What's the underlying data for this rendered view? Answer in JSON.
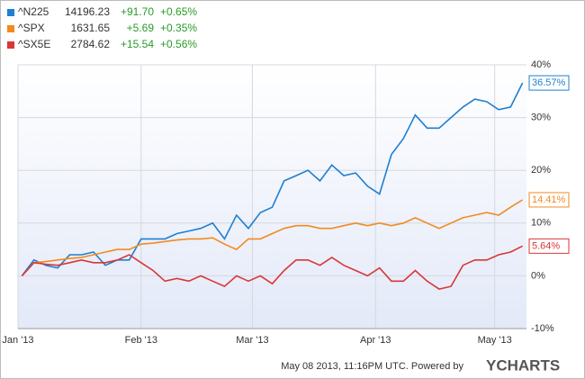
{
  "chart_data": {
    "type": "line",
    "series": [
      {
        "name": "^N225",
        "price": "14196.23",
        "change": "+91.70",
        "change_pct": "+0.65%",
        "color": "#1f7fd1",
        "end_label": "36.57%",
        "values": [
          0,
          3,
          2,
          1.5,
          4,
          4,
          4.5,
          2,
          3,
          3,
          7,
          7,
          7,
          8,
          8.5,
          9,
          10,
          7,
          11.5,
          9,
          12,
          13,
          18,
          19,
          20,
          18,
          21,
          19,
          19.5,
          17,
          15.5,
          23,
          26,
          30.5,
          28,
          28,
          30,
          32,
          33.5,
          33,
          31.5,
          32,
          36.57
        ]
      },
      {
        "name": "^SPX",
        "price": "1631.65",
        "change": "+5.69",
        "change_pct": "+0.35%",
        "color": "#f28a1f",
        "end_label": "14.41%",
        "values": [
          0,
          2.5,
          2.7,
          3,
          3.3,
          3.5,
          4,
          4.5,
          5,
          5,
          6,
          6.2,
          6.5,
          6.8,
          7,
          7,
          7.2,
          6,
          5,
          7,
          7,
          8,
          9,
          9.5,
          9.5,
          9,
          9,
          9.5,
          10,
          9.5,
          10,
          9.5,
          10,
          11,
          10,
          9,
          10,
          11,
          11.5,
          12,
          11.5,
          13,
          14.41
        ]
      },
      {
        "name": "^SX5E",
        "price": "2784.62",
        "change": "+15.54",
        "change_pct": "+0.56%",
        "color": "#d93636",
        "end_label": "5.64%",
        "values": [
          0,
          2.5,
          2.2,
          2,
          2.5,
          3,
          2.5,
          2.5,
          3,
          4,
          2.5,
          1,
          -1,
          -0.5,
          -1,
          0,
          -1,
          -2,
          0,
          -1,
          0,
          -1.5,
          1,
          3,
          3,
          2,
          3.5,
          2,
          1,
          0,
          1.5,
          -1,
          -1,
          1,
          -1,
          -2.5,
          -2,
          2,
          3,
          3,
          4,
          4.5,
          5.64
        ]
      }
    ],
    "x": [
      1,
      4,
      7,
      10,
      13,
      16,
      19,
      22,
      25,
      28,
      31,
      34,
      37,
      40,
      43,
      46,
      49,
      52,
      55,
      58,
      61,
      64,
      67,
      70,
      73,
      76,
      79,
      82,
      85,
      88,
      91,
      94,
      97,
      100,
      103,
      106,
      109,
      112,
      115,
      118,
      121,
      124,
      127
    ],
    "xlim": [
      0,
      128
    ],
    "xticks": [
      {
        "value": 0,
        "label": "Jan '13"
      },
      {
        "value": 31,
        "label": "Feb '13"
      },
      {
        "value": 59,
        "label": "Mar '13"
      },
      {
        "value": 90,
        "label": "Apr '13"
      },
      {
        "value": 120,
        "label": "May '13"
      }
    ],
    "ylim": [
      -10,
      40
    ],
    "yticks": [
      {
        "value": -10,
        "label": "-10%"
      },
      {
        "value": 0,
        "label": "0%"
      },
      {
        "value": 10,
        "label": "10%"
      },
      {
        "value": 20,
        "label": "20%"
      },
      {
        "value": 30,
        "label": "30%"
      },
      {
        "value": 40,
        "label": "40%"
      }
    ],
    "grid": true,
    "footer": "May 08 2013, 11:16PM UTC. Powered by",
    "brand": "YCHARTS"
  }
}
